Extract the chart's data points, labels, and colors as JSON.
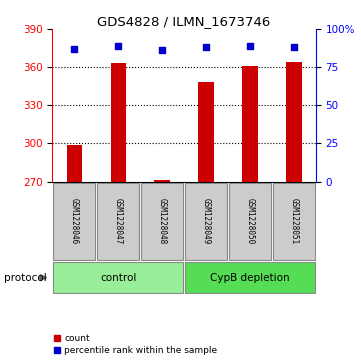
{
  "title": "GDS4828 / ILMN_1673746",
  "samples": [
    "GSM1228046",
    "GSM1228047",
    "GSM1228048",
    "GSM1228049",
    "GSM1228050",
    "GSM1228051"
  ],
  "counts": [
    299,
    363,
    271,
    348,
    361,
    364
  ],
  "percentiles": [
    87,
    89,
    86,
    88,
    89,
    88
  ],
  "ylim_left": [
    270,
    390
  ],
  "yticks_left": [
    270,
    300,
    330,
    360,
    390
  ],
  "ylim_right": [
    0,
    100
  ],
  "yticks_right": [
    0,
    25,
    50,
    75,
    100
  ],
  "yticklabels_right": [
    "0",
    "25",
    "50",
    "75",
    "100%"
  ],
  "bar_color": "#cc0000",
  "dot_color": "#0000cc",
  "bar_width": 0.35,
  "groups": [
    {
      "label": "control",
      "indices": [
        0,
        1,
        2
      ],
      "color": "#99ee99"
    },
    {
      "label": "CypB depletion",
      "indices": [
        3,
        4,
        5
      ],
      "color": "#55dd55"
    }
  ],
  "protocol_label": "protocol",
  "legend_count_label": "count",
  "legend_percentile_label": "percentile rank within the sample",
  "sample_box_color": "#cccccc",
  "figsize": [
    3.61,
    3.63
  ],
  "dpi": 100
}
